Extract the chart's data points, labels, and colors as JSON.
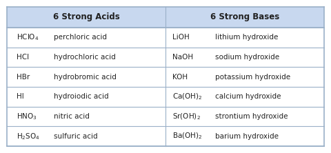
{
  "title_left": "6 Strong Acids",
  "title_right": "6 Strong Bases",
  "header_bg": "#c8d8ef",
  "row_bg": "#ffffff",
  "border_color": "#9ab0c8",
  "text_color": "#222222",
  "acids": [
    {
      "formula": "HClO$_4$",
      "name": "perchloric acid"
    },
    {
      "formula": "HCl",
      "name": "hydrochloric acid"
    },
    {
      "formula": "HBr",
      "name": "hydrobromic acid"
    },
    {
      "formula": "HI",
      "name": "hydroiodic acid"
    },
    {
      "formula": "HNO$_3$",
      "name": "nitric acid"
    },
    {
      "formula": "H$_2$SO$_4$",
      "name": "sulfuric acid"
    }
  ],
  "bases": [
    {
      "formula": "LiOH",
      "name": "lithium hydroxide"
    },
    {
      "formula": "NaOH",
      "name": "sodium hydroxide"
    },
    {
      "formula": "KOH",
      "name": "potassium hydroxide"
    },
    {
      "formula": "Ca(OH)$_2$",
      "name": "calcium hydroxide"
    },
    {
      "formula": "Sr(OH)$_2$",
      "name": "strontium hydroxide"
    },
    {
      "formula": "Ba(OH)$_2$",
      "name": "barium hydroxide"
    }
  ],
  "fig_width": 4.8,
  "fig_height": 2.22,
  "dpi": 100
}
